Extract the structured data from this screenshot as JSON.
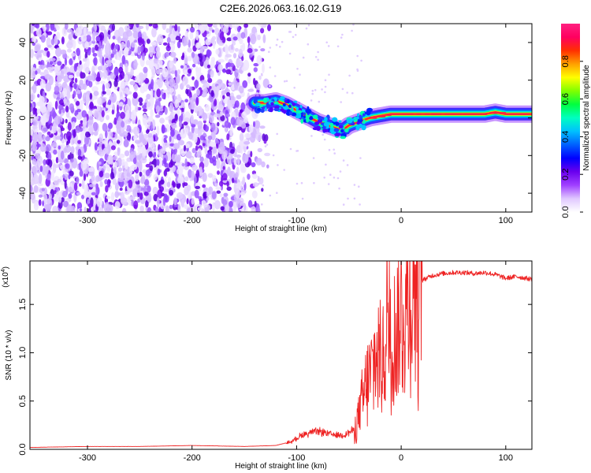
{
  "title": "C2E6.2026.063.16.02.G19",
  "chart_data": [
    {
      "type": "heatmap",
      "xlabel": "Height of straight line (km)",
      "ylabel": "Frequency (Hz)",
      "xlim": [
        -355,
        125
      ],
      "ylim": [
        -50,
        50
      ],
      "xticks": [
        -300,
        -200,
        -100,
        0,
        100
      ],
      "xtick_labels": [
        "-300",
        "-200",
        "-100",
        "0",
        "100"
      ],
      "yticks": [
        -40,
        -20,
        0,
        20,
        40
      ],
      "ytick_labels": [
        "-40",
        "-20",
        "0",
        "20",
        "40"
      ],
      "colorbar": {
        "label": "Normalized spectral amplitude",
        "range": [
          0,
          1
        ],
        "ticks": [
          0.0,
          0.2,
          0.4,
          0.6,
          0.8
        ],
        "tick_labels": [
          "0.0",
          "0.2",
          "0.4",
          "0.6",
          "0.8"
        ],
        "colors": [
          "#ffffff",
          "#e0c8ff",
          "#a040ff",
          "#6a00ee",
          "#0000ff",
          "#0060ff",
          "#00c0ff",
          "#00ffc0",
          "#00ff40",
          "#80ff00",
          "#ffff00",
          "#ffa000",
          "#ff3000",
          "#ff0060",
          "#ff2080"
        ]
      },
      "noise_region_x": [
        -355,
        -133
      ],
      "ridge": {
        "x": [
          -140,
          -130,
          -120,
          -110,
          -100,
          -90,
          -80,
          -70,
          -60,
          -55,
          -50,
          -40,
          -30,
          -20,
          -10,
          0,
          20,
          40,
          60,
          80,
          90,
          100,
          110,
          125
        ],
        "y": [
          8,
          8,
          9,
          7,
          4,
          1,
          -2,
          -4,
          -6,
          -6,
          -4,
          -2,
          0,
          1,
          2,
          2,
          2,
          2,
          2,
          2,
          3,
          2,
          2,
          2
        ]
      }
    },
    {
      "type": "line",
      "xlabel": "Height of straight line (km)",
      "ylabel": "SNR (10 * v/v)",
      "scale_label": "(x10",
      "scale_exp": "4",
      "scale_close": ")",
      "xlim": [
        -355,
        125
      ],
      "ylim": [
        0,
        1.95
      ],
      "xticks": [
        -300,
        -200,
        -100,
        0,
        100
      ],
      "xtick_labels": [
        "-300",
        "-200",
        "-100",
        "0",
        "100"
      ],
      "yticks": [
        0.0,
        0.5,
        1.0,
        1.5
      ],
      "ytick_labels": [
        "0.0",
        "0.5",
        "1.0",
        "1.5"
      ],
      "line_color": "#ee2222",
      "series": [
        {
          "name": "SNR",
          "x": [
            -355,
            -300,
            -250,
            -200,
            -150,
            -120,
            -105,
            -95,
            -85,
            -75,
            -65,
            -55,
            -45,
            -38,
            -32,
            -27,
            -22,
            -17,
            -12,
            -7,
            0,
            10,
            20,
            30,
            40,
            50,
            60,
            70,
            80,
            90,
            100,
            110,
            125
          ],
          "y": [
            0.02,
            0.03,
            0.03,
            0.04,
            0.03,
            0.04,
            0.08,
            0.15,
            0.18,
            0.18,
            0.15,
            0.15,
            0.2,
            0.45,
            0.7,
            0.85,
            0.95,
            1.0,
            1.05,
            1.15,
            1.35,
            1.6,
            1.75,
            1.8,
            1.82,
            1.83,
            1.83,
            1.82,
            1.83,
            1.81,
            1.77,
            1.79,
            1.76
          ]
        }
      ]
    }
  ]
}
